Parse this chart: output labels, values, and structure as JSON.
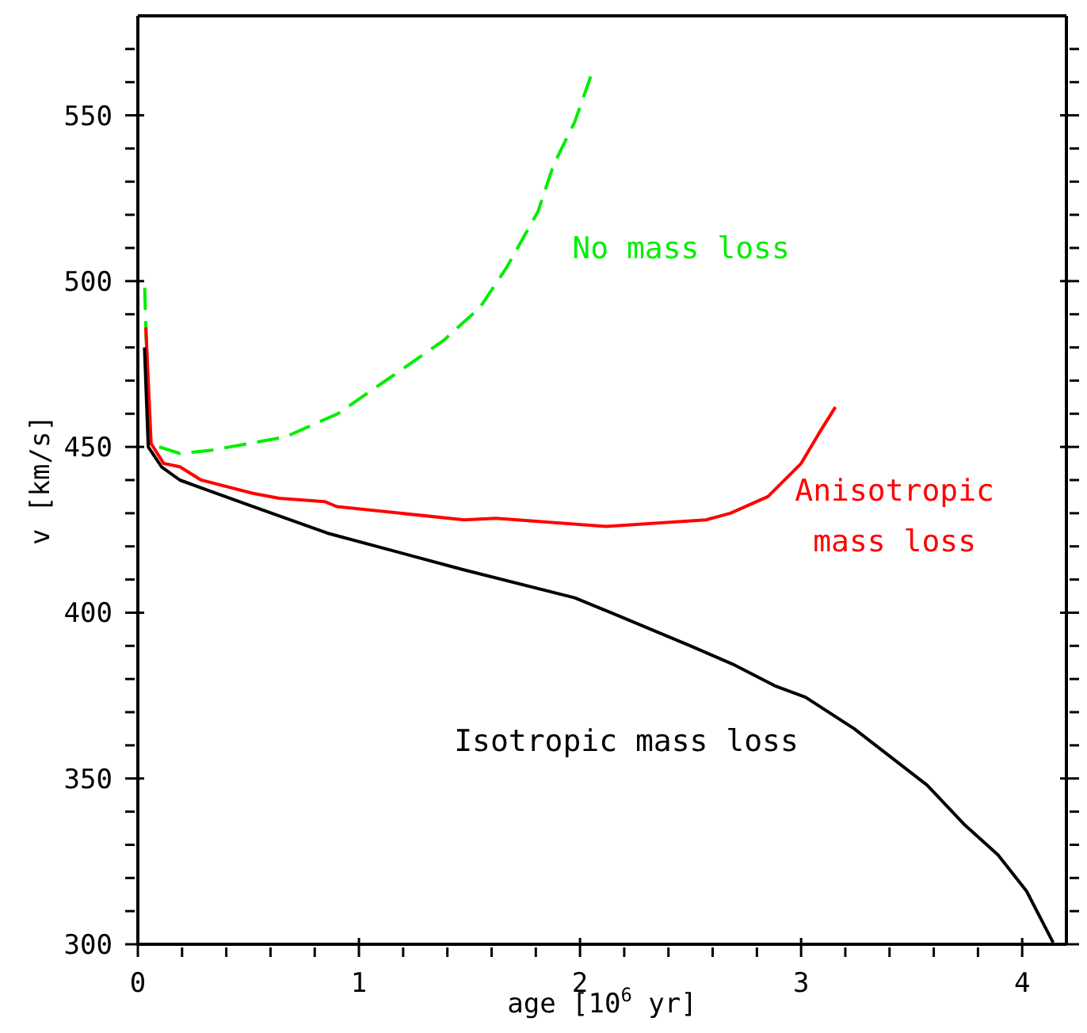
{
  "chart_data": {
    "type": "line",
    "xlabel": "age [10$^{6}$ yr]",
    "ylabel": "v [km/s]",
    "xlim": [
      0,
      4.2
    ],
    "ylim": [
      300,
      580
    ],
    "xticks": [
      0,
      {
        "value": 0.2,
        "label": null
      },
      {
        "value": 0.4,
        "label": null
      },
      {
        "value": 0.6,
        "label": null
      },
      {
        "value": 0.8,
        "label": null
      },
      1,
      {
        "value": 1.2,
        "label": null
      },
      {
        "value": 1.4,
        "label": null
      },
      {
        "value": 1.6,
        "label": null
      },
      {
        "value": 1.8,
        "label": null
      },
      2,
      {
        "value": 2.2,
        "label": null
      },
      {
        "value": 2.4,
        "label": null
      },
      {
        "value": 2.6,
        "label": null
      },
      {
        "value": 2.8,
        "label": null
      },
      3,
      {
        "value": 3.2,
        "label": null
      },
      {
        "value": 3.4,
        "label": null
      },
      {
        "value": 3.6,
        "label": null
      },
      {
        "value": 3.8,
        "label": null
      },
      4
    ],
    "yticks": [
      300,
      {
        "value": 310,
        "label": null
      },
      {
        "value": 320,
        "label": null
      },
      {
        "value": 330,
        "label": null
      },
      {
        "value": 340,
        "label": null
      },
      350,
      {
        "value": 360,
        "label": null
      },
      {
        "value": 370,
        "label": null
      },
      {
        "value": 380,
        "label": null
      },
      {
        "value": 390,
        "label": null
      },
      400,
      {
        "value": 410,
        "label": null
      },
      {
        "value": 420,
        "label": null
      },
      {
        "value": 430,
        "label": null
      },
      {
        "value": 440,
        "label": null
      },
      450,
      {
        "value": 460,
        "label": null
      },
      {
        "value": 470,
        "label": null
      },
      {
        "value": 480,
        "label": null
      },
      {
        "value": 490,
        "label": null
      },
      500,
      {
        "value": 510,
        "label": null
      },
      {
        "value": 520,
        "label": null
      },
      {
        "value": 530,
        "label": null
      },
      {
        "value": 540,
        "label": null
      },
      550,
      {
        "value": 560,
        "label": null
      },
      {
        "value": 570,
        "label": null
      }
    ],
    "marker": "none",
    "series": [
      {
        "name": "No mass loss",
        "color": "#00ee00",
        "line_style": "dashed",
        "x": [
          0.031,
          0.052,
          0.19,
          0.333,
          0.5,
          0.667,
          0.904,
          1.143,
          1.381,
          1.547,
          1.667,
          1.81,
          1.88,
          1.976,
          2.05
        ],
        "values": [
          498,
          451,
          448,
          449,
          451,
          453,
          460,
          471,
          482,
          492,
          504,
          521,
          535,
          548,
          562
        ]
      },
      {
        "name": "Anisotropic\nmass loss",
        "color": "#ff0000",
        "line_style": "solid",
        "x": [
          0.036,
          0.06,
          0.117,
          0.19,
          0.286,
          0.52,
          0.64,
          0.845,
          0.9,
          1.476,
          1.62,
          2.12,
          2.57,
          2.68,
          2.85,
          3.0,
          3.08,
          3.155
        ],
        "values": [
          486,
          451,
          445,
          444,
          440,
          436,
          434.5,
          433.5,
          432,
          428,
          428.5,
          426,
          428,
          430,
          435,
          445,
          454,
          462
        ]
      },
      {
        "name": "Isotropic mass loss",
        "color": "#000000",
        "line_style": "solid",
        "x": [
          0.03,
          0.047,
          0.107,
          0.19,
          0.52,
          0.857,
          1.47,
          1.976,
          2.14,
          2.5,
          2.69,
          2.88,
          3.02,
          3.24,
          3.57,
          3.74,
          3.89,
          4.02,
          4.14
        ],
        "values": [
          480,
          450,
          444,
          440,
          432,
          424,
          413,
          404.5,
          400,
          390,
          384.5,
          378,
          374.5,
          365,
          348,
          336,
          327,
          316,
          300.5
        ]
      }
    ]
  }
}
